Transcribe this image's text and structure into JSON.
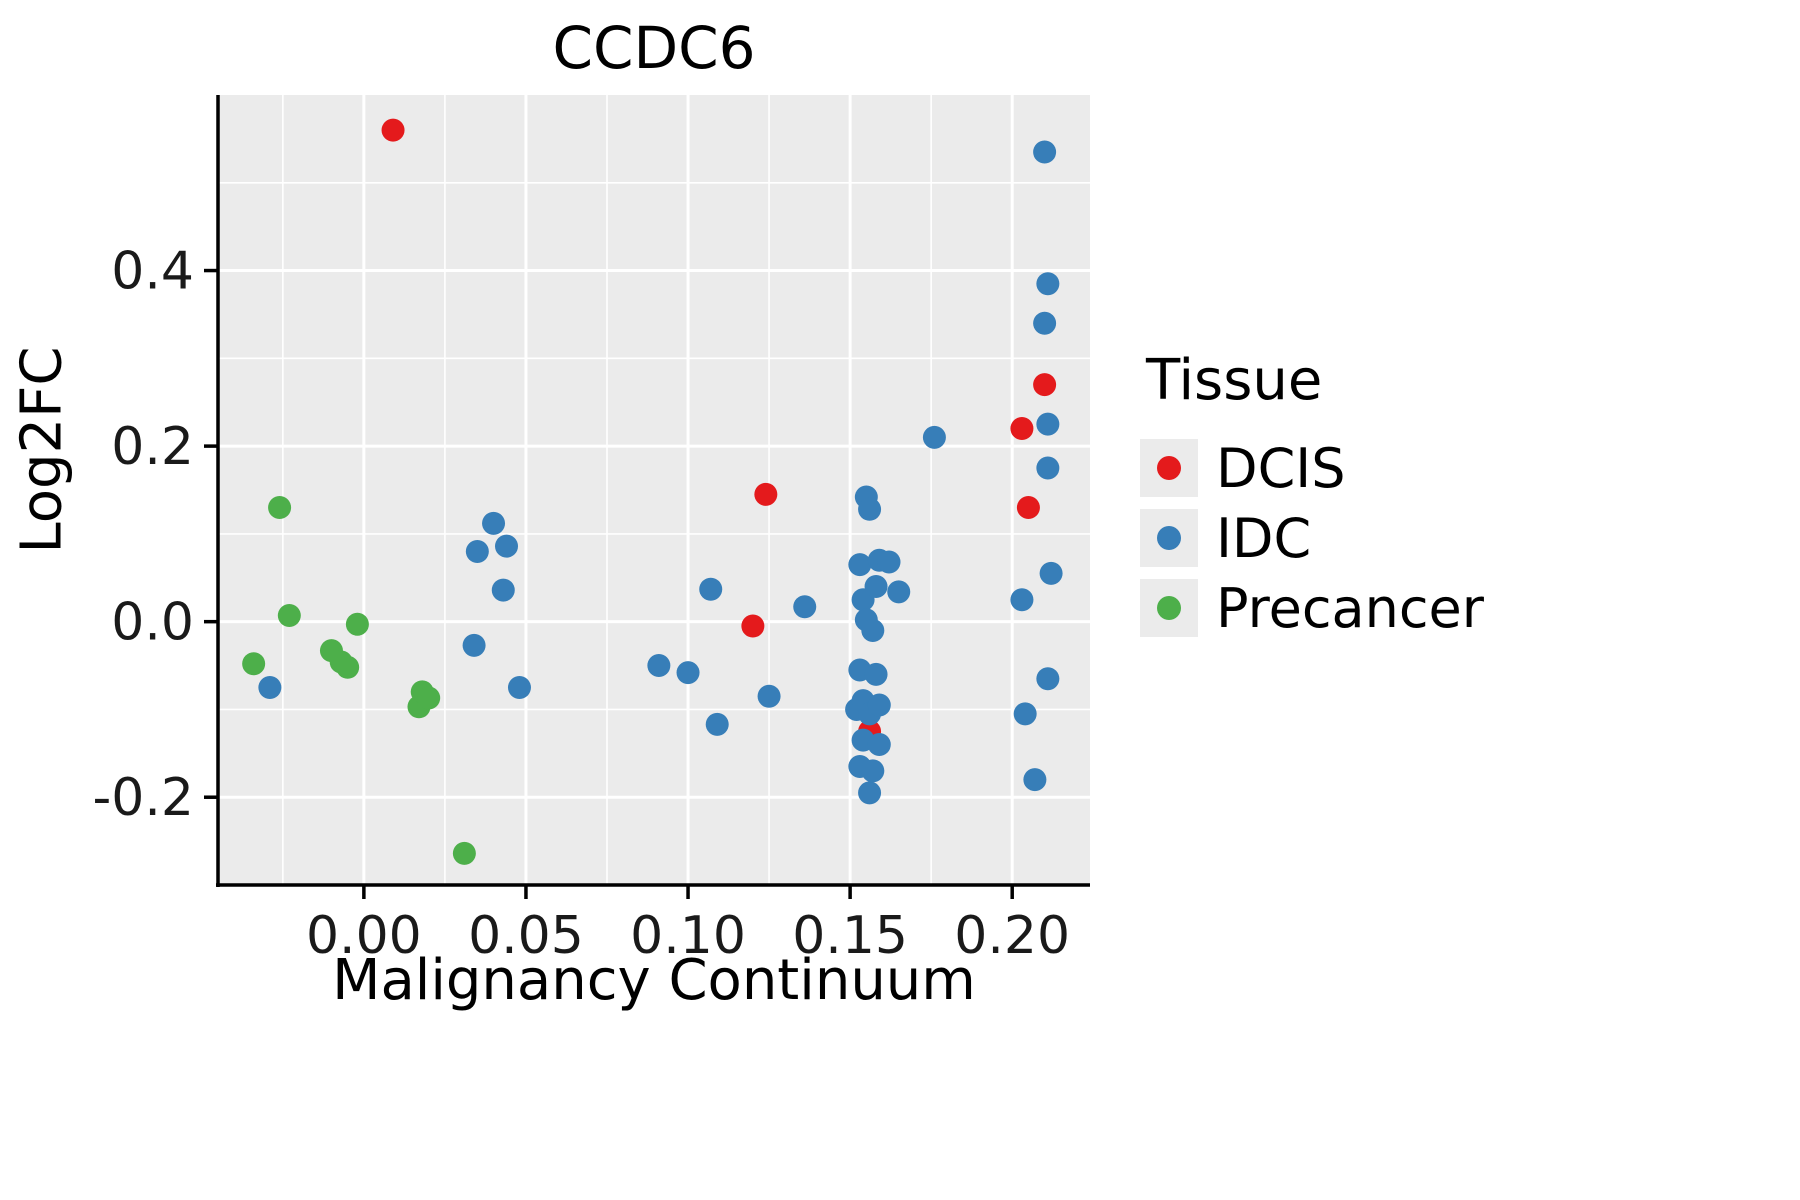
{
  "chart_data": {
    "type": "scatter",
    "title": "CCDC6",
    "xlabel": "Malignancy Continuum",
    "ylabel": "Log2FC",
    "xlim": [
      -0.045,
      0.224
    ],
    "ylim": [
      -0.3,
      0.6
    ],
    "grid": true,
    "panel_bg": "#EBEBEB",
    "grid_color": "#FFFFFF",
    "axis_color": "#000000",
    "tick_label_color": "#1a1a1a",
    "x_ticks": {
      "values": [
        0.0,
        0.05,
        0.1,
        0.15,
        0.2
      ],
      "labels": [
        "0.00",
        "0.05",
        "0.10",
        "0.15",
        "0.20"
      ]
    },
    "y_ticks": {
      "values": [
        -0.2,
        0.0,
        0.2,
        0.4
      ],
      "labels": [
        "-0.2",
        "0.0",
        "0.2",
        "0.4"
      ]
    },
    "x_minor": [
      -0.025,
      0.025,
      0.075,
      0.125,
      0.175
    ],
    "y_minor": [
      -0.1,
      0.1,
      0.3,
      0.5
    ],
    "legend": {
      "title": "Tissue",
      "position": "right"
    },
    "series": [
      {
        "name": "DCIS",
        "color": "#E41A1C",
        "points": [
          [
            0.009,
            0.56
          ],
          [
            0.12,
            -0.005
          ],
          [
            0.124,
            0.145
          ],
          [
            0.156,
            -0.125
          ],
          [
            0.203,
            0.22
          ],
          [
            0.205,
            0.13
          ],
          [
            0.21,
            0.27
          ]
        ]
      },
      {
        "name": "IDC",
        "color": "#377EB8",
        "points": [
          [
            -0.029,
            -0.075
          ],
          [
            0.034,
            -0.027
          ],
          [
            0.035,
            0.08
          ],
          [
            0.04,
            0.112
          ],
          [
            0.043,
            0.036
          ],
          [
            0.044,
            0.086
          ],
          [
            0.048,
            -0.075
          ],
          [
            0.091,
            -0.05
          ],
          [
            0.1,
            -0.058
          ],
          [
            0.107,
            0.037
          ],
          [
            0.109,
            -0.117
          ],
          [
            0.125,
            -0.085
          ],
          [
            0.136,
            0.017
          ],
          [
            0.152,
            -0.1
          ],
          [
            0.153,
            0.065
          ],
          [
            0.153,
            -0.055
          ],
          [
            0.153,
            -0.165
          ],
          [
            0.154,
            0.025
          ],
          [
            0.154,
            -0.09
          ],
          [
            0.154,
            -0.135
          ],
          [
            0.155,
            0.142
          ],
          [
            0.155,
            0.002
          ],
          [
            0.156,
            0.128
          ],
          [
            0.156,
            -0.105
          ],
          [
            0.156,
            -0.195
          ],
          [
            0.157,
            -0.01
          ],
          [
            0.157,
            -0.17
          ],
          [
            0.158,
            0.04
          ],
          [
            0.158,
            -0.06
          ],
          [
            0.159,
            0.07
          ],
          [
            0.159,
            -0.095
          ],
          [
            0.159,
            -0.14
          ],
          [
            0.162,
            0.068
          ],
          [
            0.165,
            0.034
          ],
          [
            0.176,
            0.21
          ],
          [
            0.203,
            0.025
          ],
          [
            0.204,
            -0.105
          ],
          [
            0.207,
            -0.18
          ],
          [
            0.21,
            0.535
          ],
          [
            0.21,
            0.34
          ],
          [
            0.211,
            0.385
          ],
          [
            0.211,
            0.225
          ],
          [
            0.211,
            0.175
          ],
          [
            0.211,
            -0.065
          ],
          [
            0.212,
            0.055
          ]
        ]
      },
      {
        "name": "Precancer",
        "color": "#4DAF4A",
        "points": [
          [
            -0.034,
            -0.048
          ],
          [
            -0.026,
            0.13
          ],
          [
            -0.023,
            0.007
          ],
          [
            -0.01,
            -0.033
          ],
          [
            -0.007,
            -0.046
          ],
          [
            -0.005,
            -0.052
          ],
          [
            -0.002,
            -0.003
          ],
          [
            0.017,
            -0.097
          ],
          [
            0.018,
            -0.08
          ],
          [
            0.02,
            -0.087
          ],
          [
            0.031,
            -0.264
          ]
        ]
      }
    ]
  }
}
